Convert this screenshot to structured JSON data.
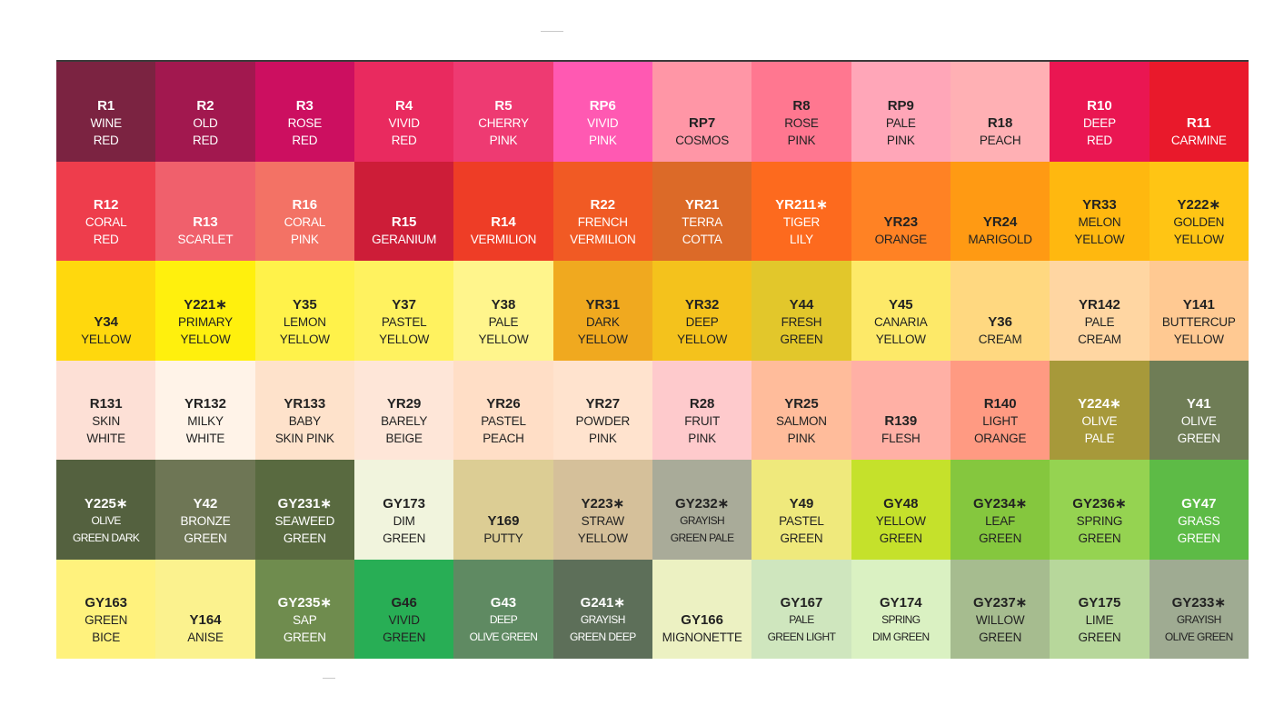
{
  "swatches": [
    {
      "code": "R1",
      "name": [
        "WINE",
        "RED"
      ],
      "color": "#7b2341",
      "text": "#ffffff"
    },
    {
      "code": "R2",
      "name": [
        "OLD",
        "RED"
      ],
      "color": "#a2184f",
      "text": "#ffffff"
    },
    {
      "code": "R3",
      "name": [
        "ROSE",
        "RED"
      ],
      "color": "#cc0f60",
      "text": "#ffffff"
    },
    {
      "code": "R4",
      "name": [
        "VIVID",
        "RED"
      ],
      "color": "#e92a5f",
      "text": "#ffffff"
    },
    {
      "code": "R5",
      "name": [
        "CHERRY",
        "PINK"
      ],
      "color": "#ee3a72",
      "text": "#ffffff"
    },
    {
      "code": "RP6",
      "name": [
        "VIVID",
        "PINK"
      ],
      "color": "#ff59b2",
      "text": "#ffffff"
    },
    {
      "code": "RP7",
      "name": [
        "COSMOS"
      ],
      "color": "#ff96a6",
      "text": "#222222"
    },
    {
      "code": "R8",
      "name": [
        "ROSE",
        "PINK"
      ],
      "color": "#ff7790",
      "text": "#222222"
    },
    {
      "code": "RP9",
      "name": [
        "PALE",
        "PINK"
      ],
      "color": "#ffa6b8",
      "text": "#222222"
    },
    {
      "code": "R18",
      "name": [
        "PEACH"
      ],
      "color": "#ffb0b4",
      "text": "#222222"
    },
    {
      "code": "R10",
      "name": [
        "DEEP",
        "RED"
      ],
      "color": "#ea1652",
      "text": "#ffffff"
    },
    {
      "code": "R11",
      "name": [
        "CARMINE"
      ],
      "color": "#e9192b",
      "text": "#ffffff"
    },
    {
      "code": "R12",
      "name": [
        "CORAL",
        "RED"
      ],
      "color": "#ee3d4c",
      "text": "#ffffff"
    },
    {
      "code": "R13",
      "name": [
        "SCARLET"
      ],
      "color": "#f0606c",
      "text": "#ffffff"
    },
    {
      "code": "R16",
      "name": [
        "CORAL",
        "PINK"
      ],
      "color": "#f37265",
      "text": "#ffffff"
    },
    {
      "code": "R15",
      "name": [
        "GERANIUM"
      ],
      "color": "#cd1d38",
      "text": "#ffffff"
    },
    {
      "code": "R14",
      "name": [
        "VERMILION"
      ],
      "color": "#ee3d26",
      "text": "#ffffff"
    },
    {
      "code": "R22",
      "name": [
        "FRENCH",
        "VERMILION"
      ],
      "color": "#f15a24",
      "text": "#ffffff"
    },
    {
      "code": "YR21",
      "name": [
        "TERRA",
        "COTTA"
      ],
      "color": "#dc6a28",
      "text": "#ffffff"
    },
    {
      "code": "YR211∗",
      "name": [
        "TIGER",
        "LILY"
      ],
      "color": "#fd6a1e",
      "text": "#ffffff"
    },
    {
      "code": "YR23",
      "name": [
        "ORANGE"
      ],
      "color": "#ff8224",
      "text": "#222222"
    },
    {
      "code": "YR24",
      "name": [
        "MARIGOLD"
      ],
      "color": "#ff9a13",
      "text": "#222222"
    },
    {
      "code": "YR33",
      "name": [
        "MELON",
        "YELLOW"
      ],
      "color": "#ffb80f",
      "text": "#222222"
    },
    {
      "code": "Y222∗",
      "name": [
        "GOLDEN",
        "YELLOW"
      ],
      "color": "#ffc514",
      "text": "#222222"
    },
    {
      "code": "Y34",
      "name": [
        "YELLOW"
      ],
      "color": "#ffd80d",
      "text": "#222222"
    },
    {
      "code": "Y221∗",
      "name": [
        "PRIMARY",
        "YELLOW"
      ],
      "color": "#fff00d",
      "text": "#222222"
    },
    {
      "code": "Y35",
      "name": [
        "LEMON",
        "YELLOW"
      ],
      "color": "#fff24a",
      "text": "#222222"
    },
    {
      "code": "Y37",
      "name": [
        "PASTEL",
        "YELLOW"
      ],
      "color": "#fff25f",
      "text": "#222222"
    },
    {
      "code": "Y38",
      "name": [
        "PALE",
        "YELLOW"
      ],
      "color": "#fff58c",
      "text": "#222222"
    },
    {
      "code": "YR31",
      "name": [
        "DARK",
        "YELLOW"
      ],
      "color": "#f0a91f",
      "text": "#222222"
    },
    {
      "code": "YR32",
      "name": [
        "DEEP",
        "YELLOW"
      ],
      "color": "#f4c21c",
      "text": "#222222"
    },
    {
      "code": "Y44",
      "name": [
        "FRESH",
        "GREEN"
      ],
      "color": "#e2c72b",
      "text": "#222222"
    },
    {
      "code": "Y45",
      "name": [
        "CANARIA",
        "YELLOW"
      ],
      "color": "#fde968",
      "text": "#222222"
    },
    {
      "code": "Y36",
      "name": [
        "CREAM"
      ],
      "color": "#ffd880",
      "text": "#222222"
    },
    {
      "code": "YR142",
      "name": [
        "PALE",
        "CREAM"
      ],
      "color": "#ffd6a2",
      "text": "#222222"
    },
    {
      "code": "Y141",
      "name": [
        "BUTTERCUP",
        "YELLOW"
      ],
      "color": "#ffc992",
      "text": "#222222"
    },
    {
      "code": "R131",
      "name": [
        "SKIN",
        "WHITE"
      ],
      "color": "#fde0d6",
      "text": "#222222"
    },
    {
      "code": "YR132",
      "name": [
        "MILKY",
        "WHITE"
      ],
      "color": "#fff3e8",
      "text": "#222222"
    },
    {
      "code": "YR133",
      "name": [
        "BABY",
        "SKIN PINK"
      ],
      "color": "#fee2cb",
      "text": "#222222"
    },
    {
      "code": "YR29",
      "name": [
        "BARELY",
        "BEIGE"
      ],
      "color": "#fee6d8",
      "text": "#222222"
    },
    {
      "code": "YR26",
      "name": [
        "PASTEL",
        "PEACH"
      ],
      "color": "#ffdec6",
      "text": "#222222"
    },
    {
      "code": "YR27",
      "name": [
        "POWDER",
        "PINK"
      ],
      "color": "#ffe3ce",
      "text": "#222222"
    },
    {
      "code": "R28",
      "name": [
        "FRUIT",
        "PINK"
      ],
      "color": "#fecacc",
      "text": "#222222"
    },
    {
      "code": "YR25",
      "name": [
        "SALMON",
        "PINK"
      ],
      "color": "#ffbc9b",
      "text": "#222222"
    },
    {
      "code": "R139",
      "name": [
        "FLESH"
      ],
      "color": "#ffb0a5",
      "text": "#222222"
    },
    {
      "code": "R140",
      "name": [
        "LIGHT",
        "ORANGE"
      ],
      "color": "#ff9a82",
      "text": "#222222"
    },
    {
      "code": "Y224∗",
      "name": [
        "OLIVE",
        "PALE"
      ],
      "color": "#a7993a",
      "text": "#ffffff"
    },
    {
      "code": "Y41",
      "name": [
        "OLIVE",
        "GREEN"
      ],
      "color": "#6f7d56",
      "text": "#ffffff"
    },
    {
      "code": "Y225∗",
      "name": [
        "OLIVE",
        "GREEN DARK"
      ],
      "color": "#54613f",
      "text": "#ffffff",
      "small": true
    },
    {
      "code": "Y42",
      "name": [
        "BRONZE",
        "GREEN"
      ],
      "color": "#6e7655",
      "text": "#ffffff"
    },
    {
      "code": "GY231∗",
      "name": [
        "SEAWEED",
        "GREEN"
      ],
      "color": "#596a40",
      "text": "#ffffff"
    },
    {
      "code": "GY173",
      "name": [
        "DIM",
        "GREEN"
      ],
      "color": "#f1f4dd",
      "text": "#222222"
    },
    {
      "code": "Y169",
      "name": [
        "PUTTY"
      ],
      "color": "#dccd94",
      "text": "#222222"
    },
    {
      "code": "Y223∗",
      "name": [
        "STRAW",
        "YELLOW"
      ],
      "color": "#d5c09a",
      "text": "#222222"
    },
    {
      "code": "GY232∗",
      "name": [
        "GRAYISH",
        "GREEN PALE"
      ],
      "color": "#a9ab99",
      "text": "#222222",
      "small": true
    },
    {
      "code": "Y49",
      "name": [
        "PASTEL",
        "GREEN"
      ],
      "color": "#efe97c",
      "text": "#222222"
    },
    {
      "code": "GY48",
      "name": [
        "YELLOW",
        "GREEN"
      ],
      "color": "#c5e12b",
      "text": "#222222"
    },
    {
      "code": "GY234∗",
      "name": [
        "LEAF",
        "GREEN"
      ],
      "color": "#85c73e",
      "text": "#222222"
    },
    {
      "code": "GY236∗",
      "name": [
        "SPRING",
        "GREEN"
      ],
      "color": "#95d351",
      "text": "#222222"
    },
    {
      "code": "GY47",
      "name": [
        "GRASS",
        "GREEN"
      ],
      "color": "#5dbb46",
      "text": "#ffffff"
    },
    {
      "code": "GY163",
      "name": [
        "GREEN",
        "BICE"
      ],
      "color": "#fff27d",
      "text": "#222222"
    },
    {
      "code": "Y164",
      "name": [
        "ANISE"
      ],
      "color": "#fbf28e",
      "text": "#222222"
    },
    {
      "code": "GY235∗",
      "name": [
        "SAP",
        "GREEN"
      ],
      "color": "#6f8c4e",
      "text": "#ffffff"
    },
    {
      "code": "G46",
      "name": [
        "VIVID",
        "GREEN"
      ],
      "color": "#28ae55",
      "text": "#222222"
    },
    {
      "code": "G43",
      "name": [
        "DEEP",
        "OLIVE GREEN"
      ],
      "color": "#5f8a62",
      "text": "#ffffff",
      "small": true
    },
    {
      "code": "G241∗",
      "name": [
        "GRAYISH",
        "GREEN DEEP"
      ],
      "color": "#5d6f59",
      "text": "#ffffff",
      "small": true
    },
    {
      "code": "GY166",
      "name": [
        "MIGNONETTE"
      ],
      "color": "#ecf1c2",
      "text": "#222222"
    },
    {
      "code": "GY167",
      "name": [
        "PALE",
        "GREEN LIGHT"
      ],
      "color": "#cfe6be",
      "text": "#222222",
      "small": true
    },
    {
      "code": "GY174",
      "name": [
        "SPRING",
        "DIM GREEN"
      ],
      "color": "#daf1c2",
      "text": "#222222",
      "small": true
    },
    {
      "code": "GY237∗",
      "name": [
        "WILLOW",
        "GREEN"
      ],
      "color": "#a6bc8f",
      "text": "#222222"
    },
    {
      "code": "GY175",
      "name": [
        "LIME",
        "GREEN"
      ],
      "color": "#b7d79b",
      "text": "#222222"
    },
    {
      "code": "GY233∗",
      "name": [
        "GRAYISH",
        "OLIVE GREEN"
      ],
      "color": "#9fab92",
      "text": "#222222",
      "small": true
    }
  ]
}
